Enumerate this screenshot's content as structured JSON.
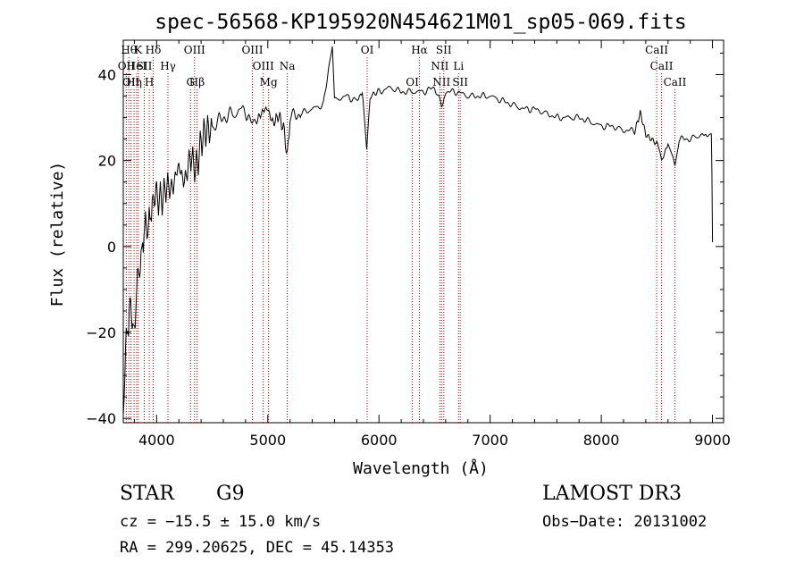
{
  "chart_data": {
    "type": "line",
    "title": "spec-56568-KP195920N454621M01_sp05-069.fits",
    "xlabel": "Wavelength (Å)",
    "ylabel": "Flux (relative)",
    "xlim": [
      3700,
      9100
    ],
    "ylim": [
      -41,
      48
    ],
    "xticks": [
      4000,
      5000,
      6000,
      7000,
      8000,
      9000
    ],
    "yticks": [
      -40,
      -20,
      0,
      20,
      40
    ],
    "grid": false,
    "series": [
      {
        "name": "flux",
        "color": "#000000",
        "x": [
          3700,
          3720,
          3740,
          3760,
          3780,
          3800,
          3820,
          3840,
          3860,
          3880,
          3900,
          3920,
          3940,
          3960,
          3980,
          4000,
          4050,
          4100,
          4150,
          4200,
          4250,
          4300,
          4350,
          4400,
          4450,
          4500,
          4600,
          4700,
          4800,
          4861,
          4900,
          4950,
          5000,
          5050,
          5100,
          5150,
          5175,
          5200,
          5300,
          5400,
          5500,
          5580,
          5600,
          5700,
          5800,
          5850,
          5890,
          5920,
          6000,
          6100,
          6200,
          6300,
          6400,
          6500,
          6563,
          6600,
          6700,
          6800,
          6900,
          7000,
          7100,
          7200,
          7300,
          7400,
          7500,
          7600,
          7700,
          7800,
          7900,
          8000,
          8100,
          8200,
          8300,
          8350,
          8400,
          8498,
          8542,
          8600,
          8662,
          8700,
          8800,
          8900,
          8950,
          8990,
          8995,
          9000
        ],
        "values": [
          -39,
          -22,
          -18,
          -12,
          -15,
          -20,
          -8,
          -5,
          -3,
          2,
          5,
          3,
          6,
          8,
          10,
          12,
          10,
          15,
          14,
          18,
          16,
          20,
          18,
          25,
          26,
          28,
          30,
          31,
          32,
          28,
          30,
          31,
          32,
          29,
          30,
          27,
          21,
          30,
          31,
          32,
          33,
          47,
          34,
          35,
          34,
          36,
          23,
          35,
          36,
          37,
          36,
          36,
          36,
          37,
          33,
          36,
          36,
          35,
          35,
          35,
          34,
          33,
          32,
          32,
          31,
          30,
          30,
          30,
          29,
          28,
          28,
          27,
          27,
          31,
          26,
          24,
          20,
          24,
          19,
          25,
          25,
          26,
          26,
          26,
          18,
          1
        ]
      }
    ],
    "lines": [
      {
        "wl": 3727,
        "label": "OII",
        "row": 2
      },
      {
        "wl": 3750,
        "label": "Hθ",
        "row": 1
      },
      {
        "wl": 3770,
        "label": "OII",
        "row": 3
      },
      {
        "wl": 3797,
        "label": "Hη",
        "row": 3
      },
      {
        "wl": 3820,
        "label": "HeI",
        "row": 2
      },
      {
        "wl": 3835,
        "label": "K",
        "row": 1
      },
      {
        "wl": 3889,
        "label": "SII",
        "row": 2
      },
      {
        "wl": 3934,
        "label": "H",
        "row": 3
      },
      {
        "wl": 3969,
        "label": "Hδ",
        "row": 1
      },
      {
        "wl": 4102,
        "label": "Hγ",
        "row": 2
      },
      {
        "wl": 4305,
        "label": "G",
        "row": 3
      },
      {
        "wl": 4341,
        "label": "OIII",
        "row": 1
      },
      {
        "wl": 4363,
        "label": "Hβ",
        "row": 3
      },
      {
        "wl": 4861,
        "label": "OIII",
        "row": 1
      },
      {
        "wl": 4959,
        "label": "OIII",
        "row": 2
      },
      {
        "wl": 5007,
        "label": "Mg",
        "row": 3
      },
      {
        "wl": 5175,
        "label": "Na",
        "row": 2
      },
      {
        "wl": 5894,
        "label": "OI",
        "row": 1
      },
      {
        "wl": 6300,
        "label": "OI",
        "row": 3
      },
      {
        "wl": 6364,
        "label": "Hα",
        "row": 1
      },
      {
        "wl": 6548,
        "label": "NII",
        "row": 2
      },
      {
        "wl": 6563,
        "label": "NII",
        "row": 3
      },
      {
        "wl": 6583,
        "label": "SII",
        "row": 1
      },
      {
        "wl": 6716,
        "label": "Li",
        "row": 2
      },
      {
        "wl": 6731,
        "label": "SII",
        "row": 3
      },
      {
        "wl": 8498,
        "label": "CaII",
        "row": 1
      },
      {
        "wl": 8542,
        "label": "CaII",
        "row": 2
      },
      {
        "wl": 8662,
        "label": "CaII",
        "row": 3
      }
    ]
  },
  "info": {
    "class_label": "STAR",
    "subclass": "G9",
    "survey": "LAMOST DR3",
    "redshift_line": "cz = −15.5 ± 15.0 km/s",
    "obs_date": "Obs−Date: 20131002",
    "coords": "RA = 299.20625, DEC =  45.14353"
  }
}
